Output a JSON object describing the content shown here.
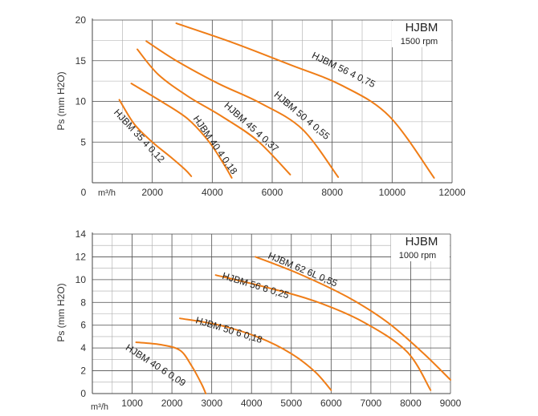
{
  "colors": {
    "curve": "#ef7d17",
    "grid": "#555555"
  },
  "chart_data": [
    {
      "type": "line",
      "title": "HJBM",
      "subtitle": "1500 rpm",
      "ylabel": "Ps (mm H2O)",
      "xunit": "m³/h",
      "xlim": [
        0,
        12000
      ],
      "ylim": [
        0,
        20
      ],
      "xticks": [
        "0",
        "2000",
        "4000",
        "6000",
        "8000",
        "10000",
        "12000"
      ],
      "yticks": [
        "5",
        "10",
        "15",
        "20"
      ],
      "grid": true,
      "series": [
        {
          "name": "HJBM 35 4 0,12",
          "x": [
            900,
            1400,
            2000,
            2600,
            3100,
            3300
          ],
          "y": [
            10.2,
            7.2,
            5.0,
            3.2,
            1.6,
            0.8
          ],
          "label_pos": [
            700,
            8.6
          ],
          "label_angle": 47
        },
        {
          "name": "HJBM 40 4 0,18",
          "x": [
            1300,
            2300,
            3200,
            3900,
            4400,
            4650
          ],
          "y": [
            12.2,
            10.0,
            7.8,
            5.0,
            2.2,
            0.6
          ],
          "label_pos": [
            3350,
            7.9
          ],
          "label_angle": 55
        },
        {
          "name": "HJBM 45 4 0,37",
          "x": [
            1500,
            2200,
            3200,
            4300,
            5500,
            6600
          ],
          "y": [
            16.4,
            13.3,
            10.6,
            8.2,
            5.2,
            1.0
          ],
          "label_pos": [
            4380,
            9.4
          ],
          "label_angle": 42
        },
        {
          "name": "HJBM 50 4 0,55",
          "x": [
            1800,
            2800,
            4200,
            5600,
            7000,
            8200
          ],
          "y": [
            17.4,
            15.0,
            12.2,
            9.8,
            6.6,
            0.7
          ],
          "label_pos": [
            6040,
            10.7
          ],
          "label_angle": 40
        },
        {
          "name": "HJBM 56 4 0,75",
          "x": [
            2800,
            4700,
            6600,
            8300,
            9900,
            11400
          ],
          "y": [
            19.6,
            17.2,
            14.5,
            12.0,
            8.2,
            0.6
          ],
          "label_pos": [
            7300,
            15.4
          ],
          "label_angle": 26
        }
      ]
    },
    {
      "type": "line",
      "title": "HJBM",
      "subtitle": "1000 rpm",
      "ylabel": "Ps (mm H2O)",
      "xunit": "m³/h",
      "xlim": [
        0,
        9000
      ],
      "ylim": [
        0,
        14
      ],
      "xticks": [
        "1000",
        "2000",
        "3000",
        "4000",
        "5000",
        "6000",
        "7000",
        "8000",
        "9000"
      ],
      "yticks": [
        "0",
        "2",
        "4",
        "6",
        "8",
        "10",
        "12",
        "14"
      ],
      "grid": true,
      "series": [
        {
          "name": "HJBM 40 6 0,09",
          "x": [
            1100,
            1700,
            2200,
            2500,
            2750,
            2850
          ],
          "y": [
            4.5,
            4.3,
            3.8,
            2.4,
            0.8,
            0.0
          ],
          "label_pos": [
            820,
            3.9
          ],
          "label_angle": 33
        },
        {
          "name": "HJBM 50 6 0,18",
          "x": [
            2200,
            3200,
            4200,
            5000,
            5600,
            6000
          ],
          "y": [
            6.6,
            6.0,
            4.9,
            3.5,
            1.9,
            0.3
          ],
          "label_pos": [
            2580,
            6.2
          ],
          "label_angle": 17
        },
        {
          "name": "HJBM 56 6 0,25",
          "x": [
            3100,
            4400,
            5600,
            6800,
            7900,
            8500
          ],
          "y": [
            10.4,
            9.3,
            8.1,
            6.3,
            3.7,
            0.3
          ],
          "label_pos": [
            3250,
            10.1
          ],
          "label_angle": 17
        },
        {
          "name": "HJBM 62 6L 0,55",
          "x": [
            4100,
            5200,
            6400,
            7400,
            8300,
            9000
          ],
          "y": [
            12.0,
            10.5,
            8.5,
            6.3,
            3.6,
            1.2
          ],
          "label_pos": [
            4400,
            11.9
          ],
          "label_angle": 23
        }
      ]
    }
  ]
}
